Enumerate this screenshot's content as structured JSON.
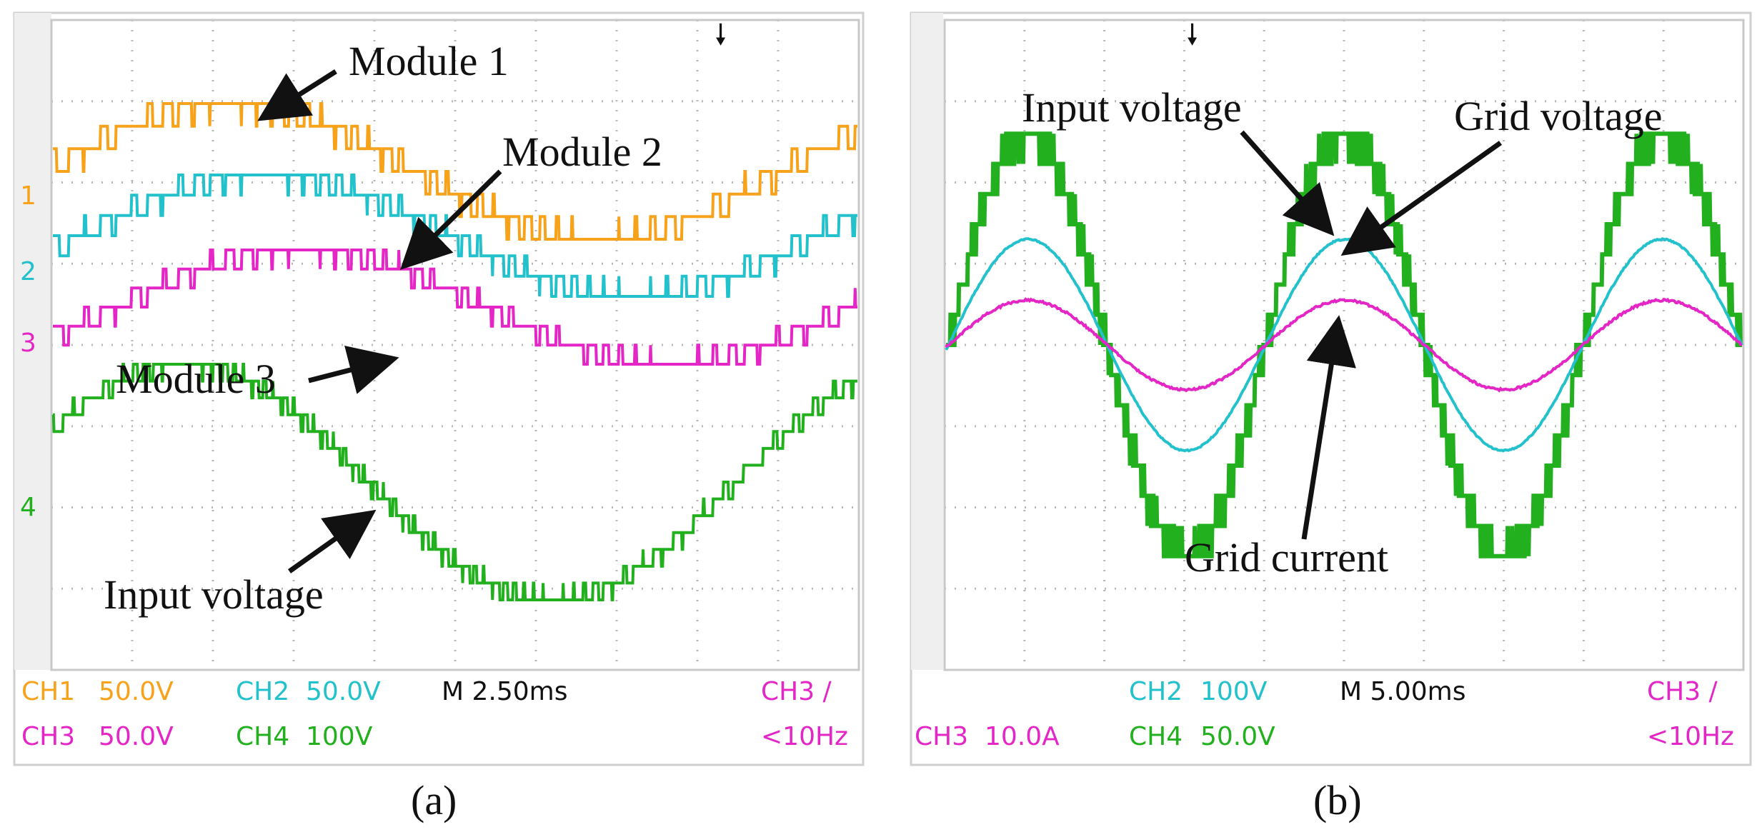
{
  "chart_data": [
    {
      "panel": "(a)",
      "type": "line",
      "time_per_div": "M 2.50ms",
      "series": [
        {
          "name": "Module 1",
          "channel": "CH1",
          "scale": "50.0V",
          "color": "#f7a21b",
          "marker": "1",
          "kind": "multilevel",
          "amplitude_levels": 3
        },
        {
          "name": "Module 2",
          "channel": "CH2",
          "scale": "50.0V",
          "color": "#22c1cc",
          "marker": "2",
          "kind": "multilevel",
          "amplitude_levels": 3
        },
        {
          "name": "Module 3",
          "channel": "CH3",
          "scale": "50.0V",
          "color": "#e326c5",
          "marker": "3",
          "kind": "multilevel",
          "amplitude_levels": 3
        },
        {
          "name": "Input voltage",
          "channel": "CH4",
          "scale": "100V",
          "color": "#22b01e",
          "marker": "4",
          "kind": "staircase",
          "amplitude_levels": 7
        }
      ],
      "readouts": {
        "ch1": "CH1",
        "ch1_scale": "50.0V",
        "ch2": "CH2",
        "ch2_scale": "50.0V",
        "ch3": "CH3",
        "ch3_scale": "50.0V",
        "ch4": "CH4",
        "ch4_scale": "100V",
        "time": "M 2.50ms",
        "trigger": "CH3 ∕",
        "freq": "<10Hz"
      },
      "annotations": [
        "Module 1",
        "Module 2",
        "Module 3",
        "Input voltage"
      ]
    },
    {
      "panel": "(b)",
      "type": "line",
      "time_per_div": "M 5.00ms",
      "series": [
        {
          "name": "Input voltage",
          "channel": "CH4",
          "scale": "50.0V",
          "color": "#22b01e",
          "kind": "staircase",
          "amplitude_divs": 2.6
        },
        {
          "name": "Grid voltage",
          "channel": "CH2",
          "scale": "100V",
          "color": "#22c1cc",
          "kind": "sine",
          "amplitude_divs": 1.3
        },
        {
          "name": "Grid current",
          "channel": "CH3",
          "scale": "10.0A",
          "color": "#e326c5",
          "kind": "sine",
          "amplitude_divs": 0.55
        }
      ],
      "readouts": {
        "ch2": "CH2",
        "ch2_scale": "100V",
        "ch3": "CH3",
        "ch3_scale": "10.0A",
        "ch4": "CH4",
        "ch4_scale": "50.0V",
        "time": "M 5.00ms",
        "trigger": "CH3 ∕",
        "freq": "<10Hz"
      },
      "annotations": [
        "Input voltage",
        "Grid voltage",
        "Grid current"
      ]
    }
  ],
  "captions": {
    "a": "(a)",
    "b": "(b)"
  }
}
